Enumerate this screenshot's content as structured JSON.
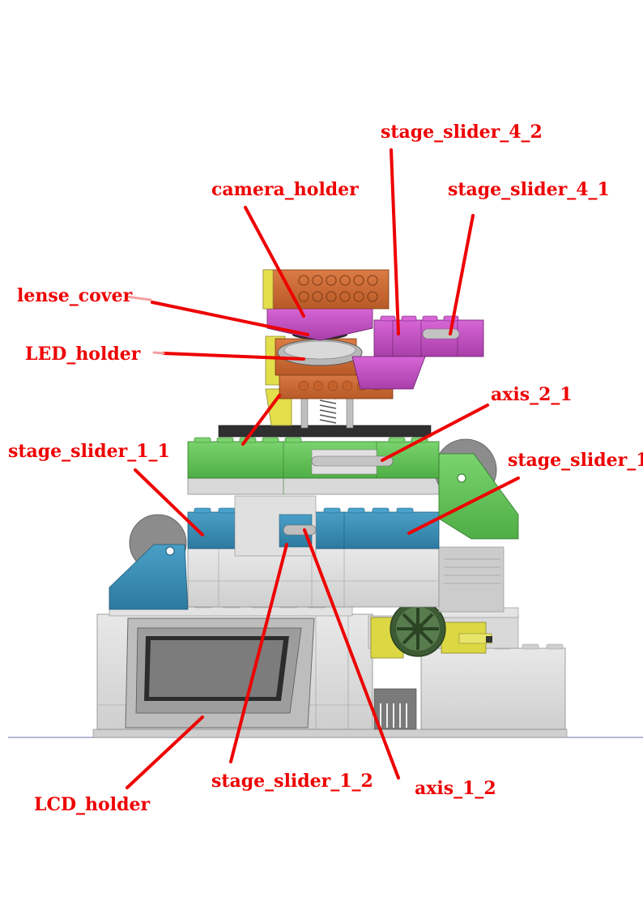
{
  "labels": {
    "stage_slider_4_2": "stage_slider_4_2",
    "camera_holder": "camera_holder",
    "stage_slider_4_1": "stage_slider_4_1",
    "lense_cover": "lense_cover",
    "led_holder": "LED_holder",
    "axis_2_1": "axis_2_1",
    "stage_slider_1_1": "stage_slider_1_1",
    "stage_slider_1_cut": "stage_slider_1_",
    "stage_slider_1_2": "stage_slider_1_2",
    "axis_1_2": "axis_1_2",
    "lcd_holder": "LCD_holder"
  },
  "colors": {
    "label_red": "#ee0000",
    "magenta": "#c84fc8",
    "orange": "#cf6a35",
    "yellow": "#e0dc4a",
    "green": "#62c25a",
    "blue": "#3a8db5",
    "grey": "#d7d7d7",
    "dark_grey": "#6e6e6e",
    "dark_green": "#3a5a32"
  }
}
